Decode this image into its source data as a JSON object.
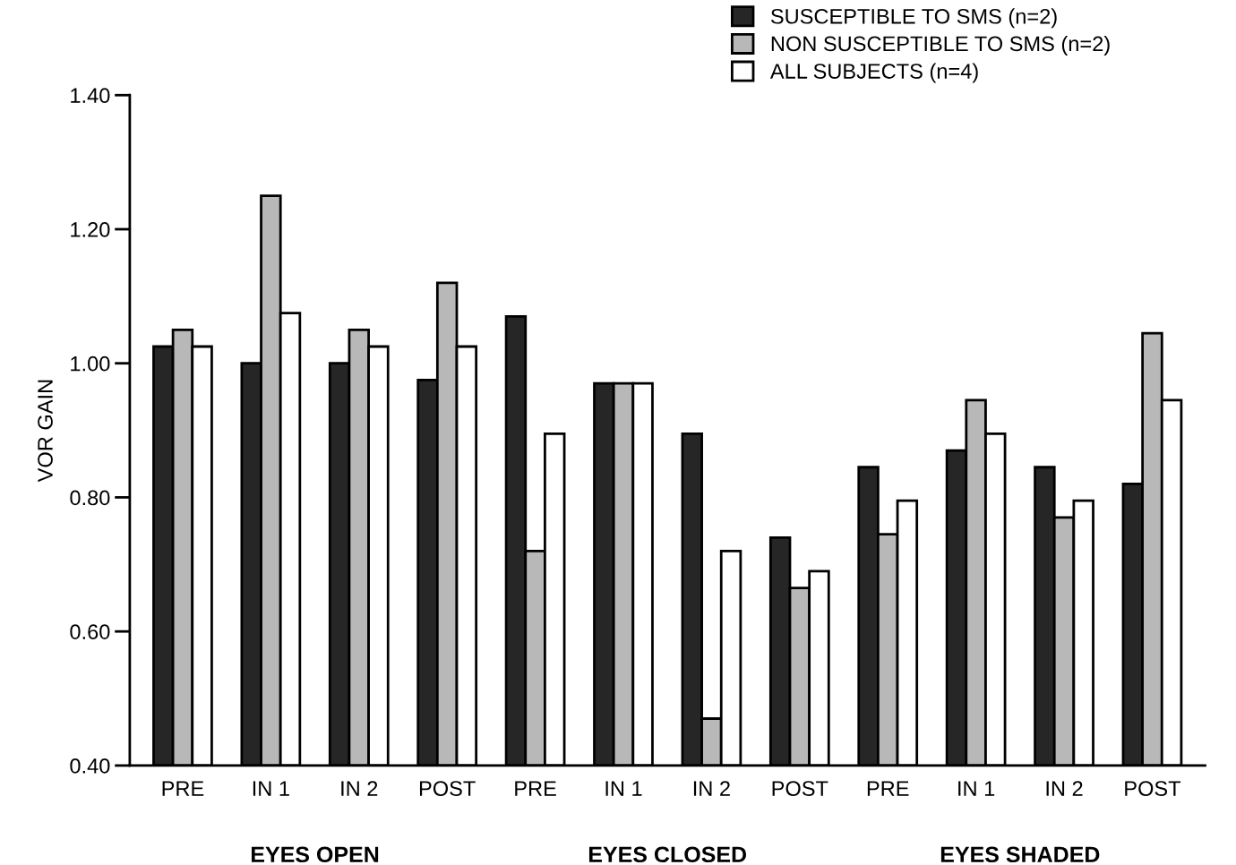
{
  "chart_data": {
    "type": "bar",
    "ylabel": "VOR GAIN",
    "categories": [
      "PRE",
      "IN 1",
      "IN 2",
      "POST",
      "PRE",
      "IN 1",
      "IN 2",
      "POST",
      "PRE",
      "IN 1",
      "IN 2",
      "POST"
    ],
    "series": [
      {
        "name": "SUSCEPTIBLE TO SMS (n=2)",
        "color": "#262626",
        "values": [
          1.025,
          1.0,
          1.0,
          0.975,
          1.07,
          0.97,
          0.895,
          0.74,
          0.845,
          0.87,
          0.845,
          0.82
        ]
      },
      {
        "name": "NON SUSCEPTIBLE TO SMS (n=2)",
        "color": "#b8b8b8",
        "values": [
          1.05,
          1.25,
          1.05,
          1.12,
          0.72,
          0.97,
          0.47,
          0.665,
          0.745,
          0.945,
          0.77,
          1.045
        ]
      },
      {
        "name": "ALL SUBJECTS (n=4)",
        "color": "#ffffff",
        "values": [
          1.025,
          1.075,
          1.025,
          1.025,
          0.895,
          0.97,
          0.72,
          0.69,
          0.795,
          0.895,
          0.795,
          0.945
        ]
      }
    ],
    "annotations": [
      "EYES OPEN",
      "EYES CLOSED",
      "EYES SHADED"
    ],
    "ylim": [
      0.4,
      1.4
    ],
    "yticks": [
      {
        "value": 0.4,
        "label": "0.40"
      },
      {
        "value": 0.6,
        "label": "0.60"
      },
      {
        "value": 0.8,
        "label": "0.80"
      },
      {
        "value": 1.0,
        "label": "1.00"
      },
      {
        "value": 1.2,
        "label": "1.20"
      },
      {
        "value": 1.4,
        "label": "1.40"
      }
    ],
    "grid": false,
    "legend": "top right"
  }
}
